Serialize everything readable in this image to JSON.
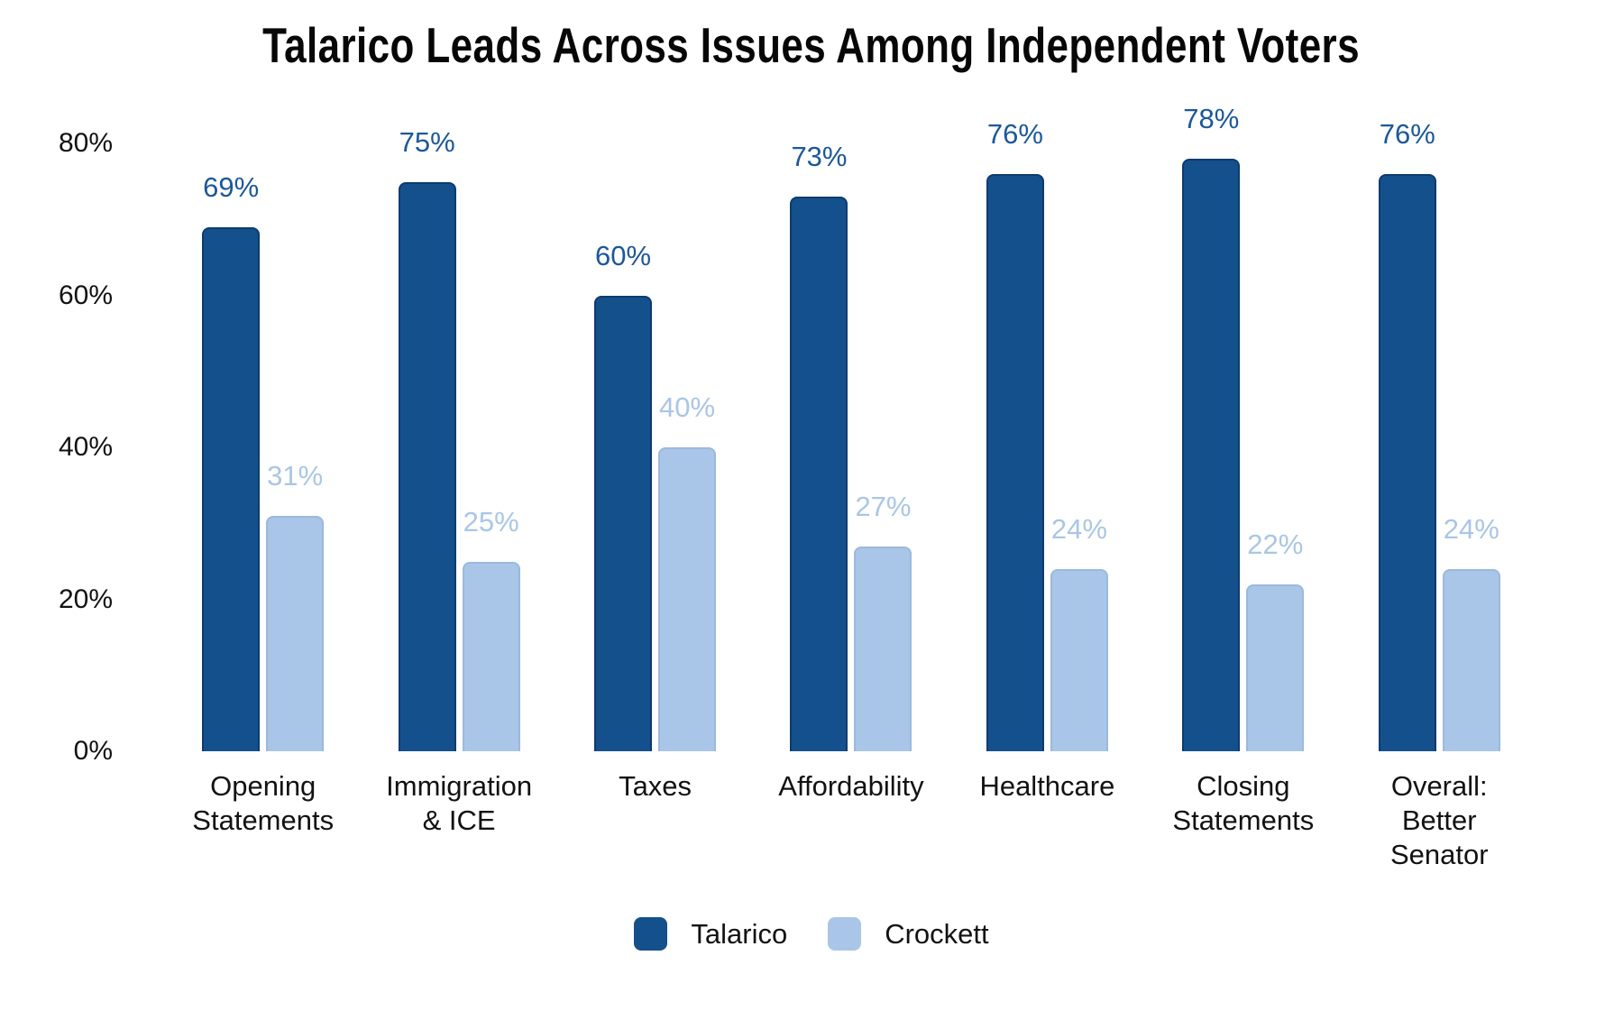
{
  "chart_data": {
    "type": "bar",
    "title": "Talarico Leads Across Issues Among Independent Voters",
    "categories": [
      "Opening\nStatements",
      "Immigration\n& ICE",
      "Taxes",
      "Affordability",
      "Healthcare",
      "Closing\nStatements",
      "Overall:\nBetter\nSenator"
    ],
    "series": [
      {
        "name": "Talarico",
        "color": "#14508C",
        "border_color": "#0D3C6E",
        "label_color": "#1C5899",
        "values": [
          69,
          75,
          60,
          73,
          76,
          78,
          76
        ]
      },
      {
        "name": "Crockett",
        "color": "#A9C6E8",
        "border_color": "#9BB9DD",
        "label_color": "#A9C6E6",
        "values": [
          31,
          25,
          40,
          27,
          24,
          22,
          24
        ]
      }
    ],
    "y_ticks": [
      "0%",
      "20%",
      "40%",
      "60%",
      "80%"
    ],
    "y_tick_values": [
      0,
      20,
      40,
      60,
      80
    ],
    "ylim": [
      0,
      87
    ],
    "value_suffix": "%",
    "grid": false,
    "axis_lines": false,
    "legend_position": "bottom",
    "background_color": "#FFFFFF",
    "text_color": "#121212"
  }
}
